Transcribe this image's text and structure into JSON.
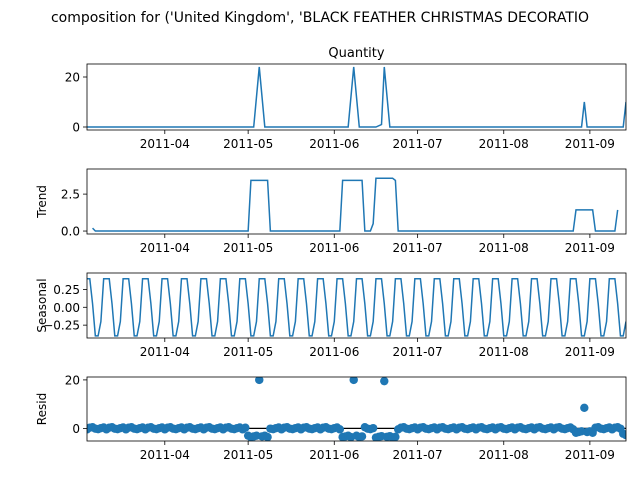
{
  "figure": {
    "suptitle": "composition for ('United Kingdom', 'BLACK FEATHER CHRISTMAS DECORATIO"
  },
  "colors": {
    "line": "#1f77b4",
    "marker": "#1f77b4",
    "axis": "#000000",
    "zero_line": "#000000"
  },
  "chart_data": [
    {
      "id": "observed",
      "type": "line",
      "title": "Quantity",
      "ylabel": "",
      "x_start": "2011-03-04",
      "x_end": "2011-09-14",
      "x_tick_labels": [
        "2011-04",
        "2011-05",
        "2011-06",
        "2011-07",
        "2011-08",
        "2011-09"
      ],
      "x_tick_dates": [
        "2011-04-01",
        "2011-05-01",
        "2011-06-01",
        "2011-07-01",
        "2011-08-01",
        "2011-09-01"
      ],
      "y_tick_labels": [
        "0",
        "20"
      ],
      "y_tick_values": [
        0,
        20
      ],
      "ylim": [
        -1.2,
        25.2
      ],
      "series": [
        {
          "points": [
            [
              "2011-03-04",
              0
            ],
            [
              "2011-05-03",
              0
            ],
            [
              "2011-05-05",
              24
            ],
            [
              "2011-05-07",
              0
            ],
            [
              "2011-06-06",
              0
            ],
            [
              "2011-06-08",
              24
            ],
            [
              "2011-06-10",
              0
            ],
            [
              "2011-06-16",
              0
            ],
            [
              "2011-06-18",
              1
            ],
            [
              "2011-06-19",
              24
            ],
            [
              "2011-06-21",
              0
            ],
            [
              "2011-08-29",
              0
            ],
            [
              "2011-08-30",
              10
            ],
            [
              "2011-08-31",
              0
            ],
            [
              "2011-09-13",
              0
            ],
            [
              "2011-09-14",
              10
            ]
          ]
        }
      ]
    },
    {
      "id": "trend",
      "type": "line",
      "title": "",
      "ylabel": "Trend",
      "x_start": "2011-03-04",
      "x_end": "2011-09-14",
      "x_tick_labels": [
        "2011-04",
        "2011-05",
        "2011-06",
        "2011-07",
        "2011-08",
        "2011-09"
      ],
      "x_tick_dates": [
        "2011-04-01",
        "2011-05-01",
        "2011-06-01",
        "2011-07-01",
        "2011-08-01",
        "2011-09-01"
      ],
      "y_tick_labels": [
        "0.0",
        "2.5"
      ],
      "y_tick_values": [
        0,
        2.5
      ],
      "ylim": [
        -0.2,
        4.2
      ],
      "series": [
        {
          "points": [
            [
              "2011-03-06",
              0.2
            ],
            [
              "2011-03-07",
              0
            ],
            [
              "2011-05-01",
              0
            ],
            [
              "2011-05-02",
              3.43
            ],
            [
              "2011-05-08",
              3.43
            ],
            [
              "2011-05-09",
              0
            ],
            [
              "2011-06-03",
              0
            ],
            [
              "2011-06-04",
              3.43
            ],
            [
              "2011-06-11",
              3.43
            ],
            [
              "2011-06-12",
              0
            ],
            [
              "2011-06-14",
              0
            ],
            [
              "2011-06-15",
              0.5
            ],
            [
              "2011-06-16",
              3.57
            ],
            [
              "2011-06-22",
              3.57
            ],
            [
              "2011-06-23",
              3.43
            ],
            [
              "2011-06-24",
              0
            ],
            [
              "2011-08-26",
              0
            ],
            [
              "2011-08-27",
              1.43
            ],
            [
              "2011-09-02",
              1.43
            ],
            [
              "2011-09-03",
              0
            ],
            [
              "2011-09-10",
              0
            ],
            [
              "2011-09-11",
              1.43
            ]
          ]
        }
      ]
    },
    {
      "id": "seasonal",
      "type": "line",
      "title": "",
      "ylabel": "Seasonal",
      "x_start": "2011-03-04",
      "x_end": "2011-09-14",
      "x_tick_labels": [
        "2011-04",
        "2011-05",
        "2011-06",
        "2011-07",
        "2011-08",
        "2011-09"
      ],
      "x_tick_dates": [
        "2011-04-01",
        "2011-05-01",
        "2011-06-01",
        "2011-07-01",
        "2011-08-01",
        "2011-09-01"
      ],
      "y_tick_labels": [
        "0.25",
        "0.00",
        "−0.25"
      ],
      "y_tick_values": [
        0.25,
        0,
        -0.25
      ],
      "ylim": [
        -0.43,
        0.48
      ],
      "period_days": 7,
      "period_pattern": [
        0.4,
        0.4,
        0.05,
        -0.4,
        -0.4,
        -0.2,
        0.4
      ],
      "series": []
    },
    {
      "id": "resid",
      "type": "scatter",
      "title": "",
      "ylabel": "Resid",
      "x_start": "2011-03-04",
      "x_end": "2011-09-14",
      "x_tick_labels": [
        "2011-04",
        "2011-05",
        "2011-06",
        "2011-07",
        "2011-08",
        "2011-09"
      ],
      "x_tick_dates": [
        "2011-04-01",
        "2011-05-01",
        "2011-06-01",
        "2011-07-01",
        "2011-08-01",
        "2011-09-01"
      ],
      "y_tick_labels": [
        "0",
        "20"
      ],
      "y_tick_values": [
        0,
        20
      ],
      "ylim": [
        -5.2,
        21.2
      ],
      "zero_line": true,
      "outliers": [
        [
          "2011-05-05",
          20
        ],
        [
          "2011-06-08",
          20
        ],
        [
          "2011-06-19",
          19.5
        ],
        [
          "2011-08-30",
          8.5
        ]
      ],
      "negative_runs": [
        [
          "2011-05-01",
          "2011-05-08",
          -3.3
        ],
        [
          "2011-06-04",
          "2011-06-11",
          -3.3
        ],
        [
          "2011-06-16",
          "2011-06-23",
          -3.5
        ],
        [
          "2011-08-27",
          "2011-09-02",
          -1.5
        ],
        [
          "2011-09-13",
          "2011-09-14",
          -2.5
        ]
      ],
      "baseline_pattern": [
        -0.4,
        0.3,
        0.5,
        -0.1,
        -0.3,
        0.1,
        0.4
      ]
    }
  ]
}
